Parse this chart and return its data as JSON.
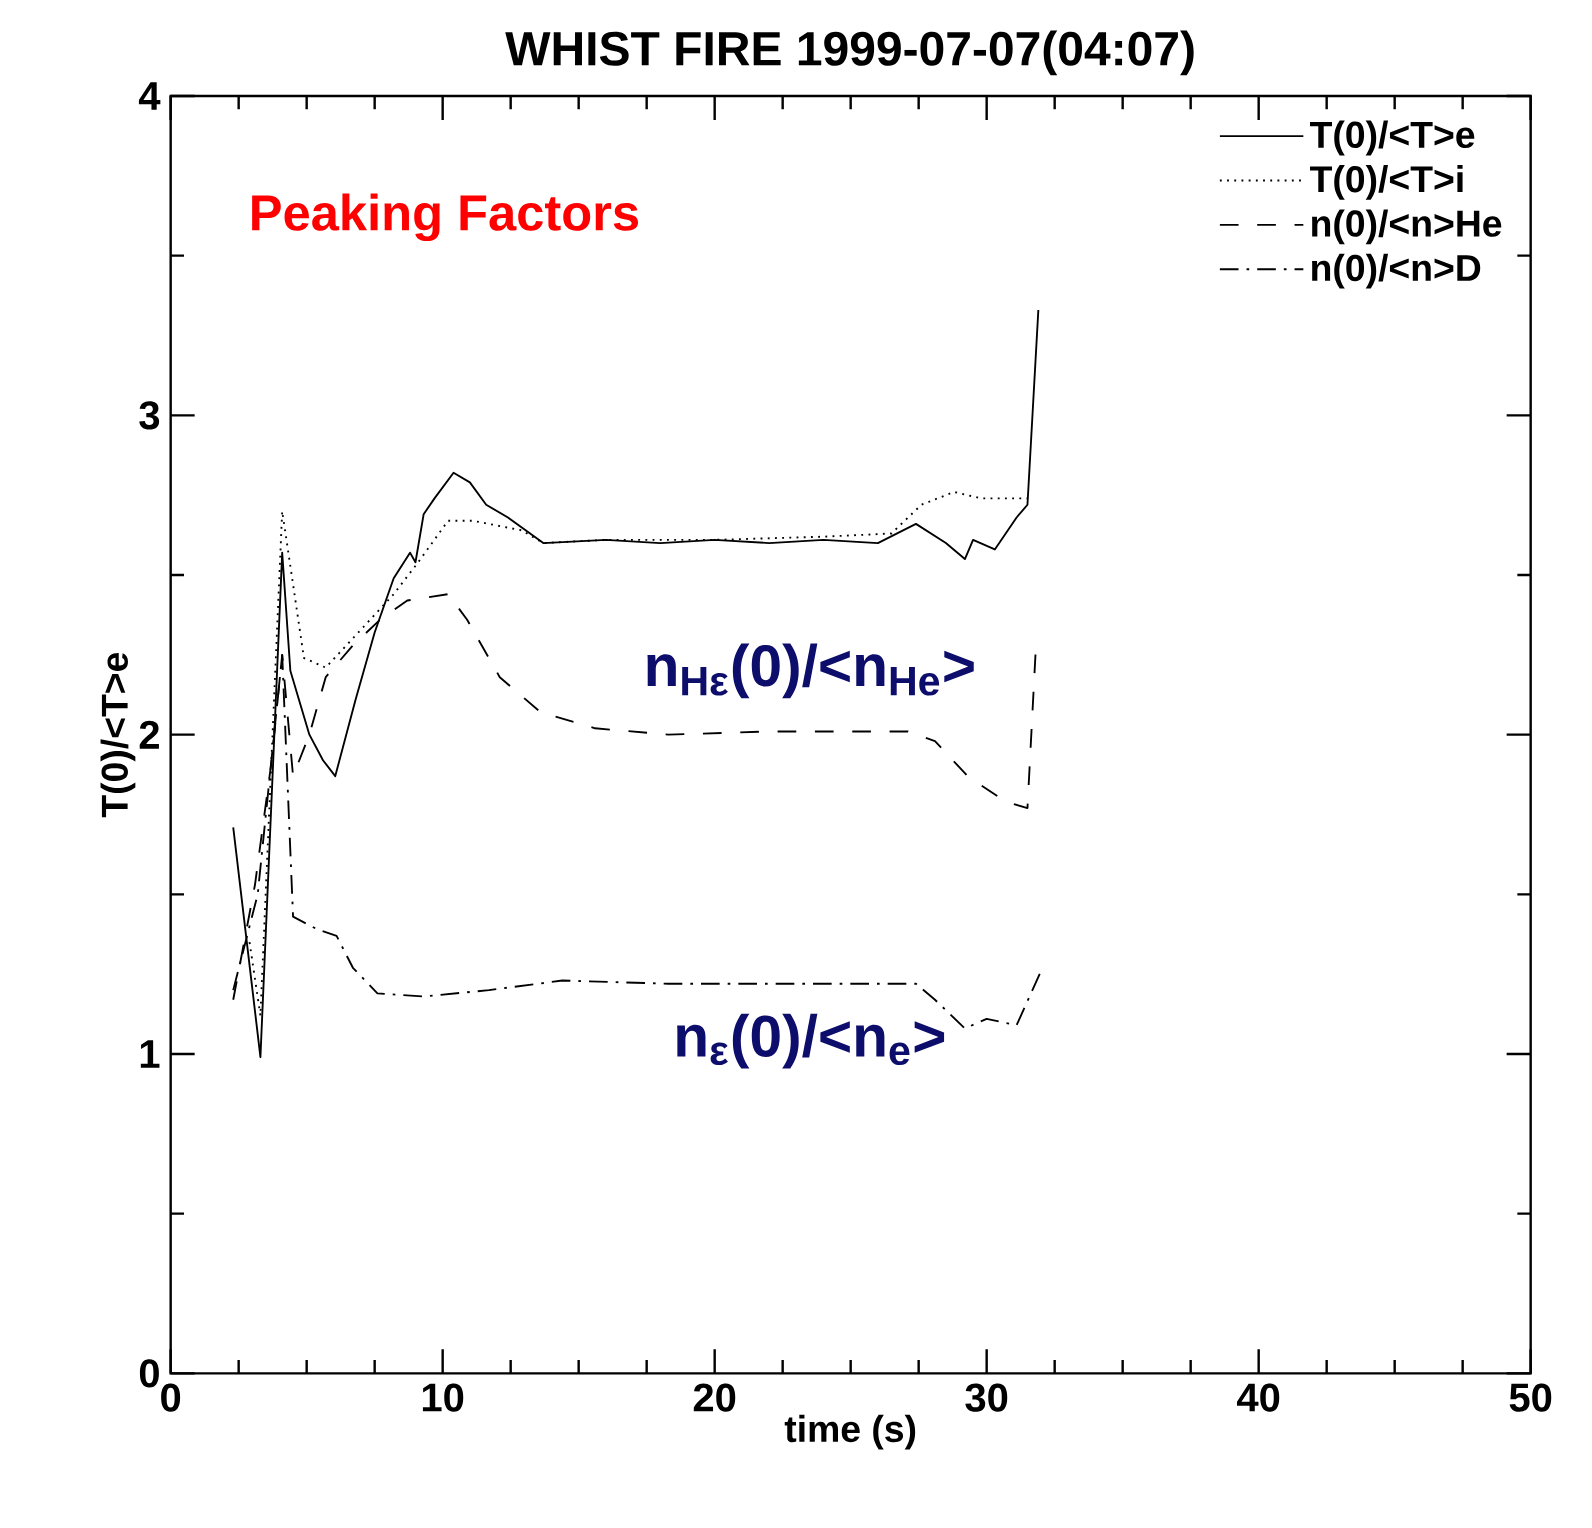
{
  "chart_data": {
    "type": "line",
    "title": "WHIST  FIRE 1999-07-07(04:07)",
    "xlabel": "time (s)",
    "ylabel": "T(0)/<T>e",
    "xlim": [
      0,
      50
    ],
    "xticks": [
      0,
      10,
      20,
      30,
      40,
      50
    ],
    "ylim": [
      0,
      4
    ],
    "yticks": [
      0,
      1,
      2,
      3,
      4
    ],
    "legend": "top right",
    "grid": false,
    "marker": "none",
    "annotations": [
      "Peaking Factors",
      "n$_{Hε}$(0)/<n$_{He}$>",
      "n$_{ε}$(0)/<n$_{e}$>"
    ],
    "series": [
      {
        "name": "T(0)/<T>e",
        "color": "#000000",
        "line_style": "solid",
        "x": [
          2.3,
          3.3,
          4.1,
          4.4,
          5.1,
          5.6,
          6.05,
          6.8,
          7.5,
          8.2,
          8.8,
          9.0,
          9.3,
          9.7,
          10.4,
          11.0,
          11.6,
          12.4,
          13.7,
          16,
          18,
          20,
          22,
          24,
          26,
          27.4,
          28.5,
          29.2,
          29.5,
          30.3,
          31.1,
          31.5,
          31.9
        ],
        "values": [
          1.71,
          0.99,
          2.57,
          2.2,
          2.0,
          1.92,
          1.87,
          2.11,
          2.32,
          2.49,
          2.57,
          2.54,
          2.69,
          2.74,
          2.82,
          2.79,
          2.72,
          2.68,
          2.6,
          2.61,
          2.6,
          2.61,
          2.6,
          2.61,
          2.6,
          2.66,
          2.6,
          2.55,
          2.61,
          2.58,
          2.68,
          2.72,
          3.33
        ]
      },
      {
        "name": "T(0)/<T>i",
        "color": "#000000",
        "line_style": "dotted",
        "x": [
          2.9,
          3.3,
          4.1,
          4.9,
          5.7,
          6.9,
          8.2,
          9.1,
          10.2,
          11.1,
          12.9,
          13.7,
          16,
          20,
          24,
          26.5,
          27.6,
          28.8,
          29.8,
          31.5
        ],
        "values": [
          1.35,
          1.12,
          2.7,
          2.24,
          2.21,
          2.32,
          2.44,
          2.54,
          2.67,
          2.67,
          2.64,
          2.6,
          2.61,
          2.61,
          2.62,
          2.63,
          2.72,
          2.76,
          2.74,
          2.74
        ]
      },
      {
        "name": "n(0)/<n>He",
        "color": "#000000",
        "line_style": "dashed",
        "x": [
          2.3,
          3.1,
          3.7,
          4.1,
          4.5,
          5.1,
          5.7,
          6.7,
          7.7,
          8.7,
          10.2,
          10.9,
          12.1,
          13.6,
          15.6,
          18.3,
          22,
          27.1,
          28.1,
          29.3,
          30.7,
          31.5,
          31.8
        ],
        "values": [
          1.17,
          1.53,
          1.91,
          2.25,
          1.87,
          2.0,
          2.18,
          2.28,
          2.36,
          2.42,
          2.44,
          2.36,
          2.18,
          2.07,
          2.02,
          2.0,
          2.01,
          2.01,
          1.98,
          1.87,
          1.79,
          1.77,
          2.26
        ]
      },
      {
        "name": "n(0)/<n>D",
        "color": "#000000",
        "line_style": "dashdot",
        "x": [
          2.3,
          3.2,
          4.1,
          4.5,
          5.4,
          6.1,
          6.7,
          7.6,
          9.3,
          11.7,
          14.4,
          18.3,
          22,
          27.4,
          28.1,
          29.2,
          30.0,
          31.1,
          32.0
        ],
        "values": [
          1.2,
          1.5,
          2.25,
          1.43,
          1.39,
          1.37,
          1.27,
          1.19,
          1.18,
          1.2,
          1.23,
          1.22,
          1.22,
          1.22,
          1.17,
          1.08,
          1.11,
          1.09,
          1.26
        ]
      }
    ]
  }
}
